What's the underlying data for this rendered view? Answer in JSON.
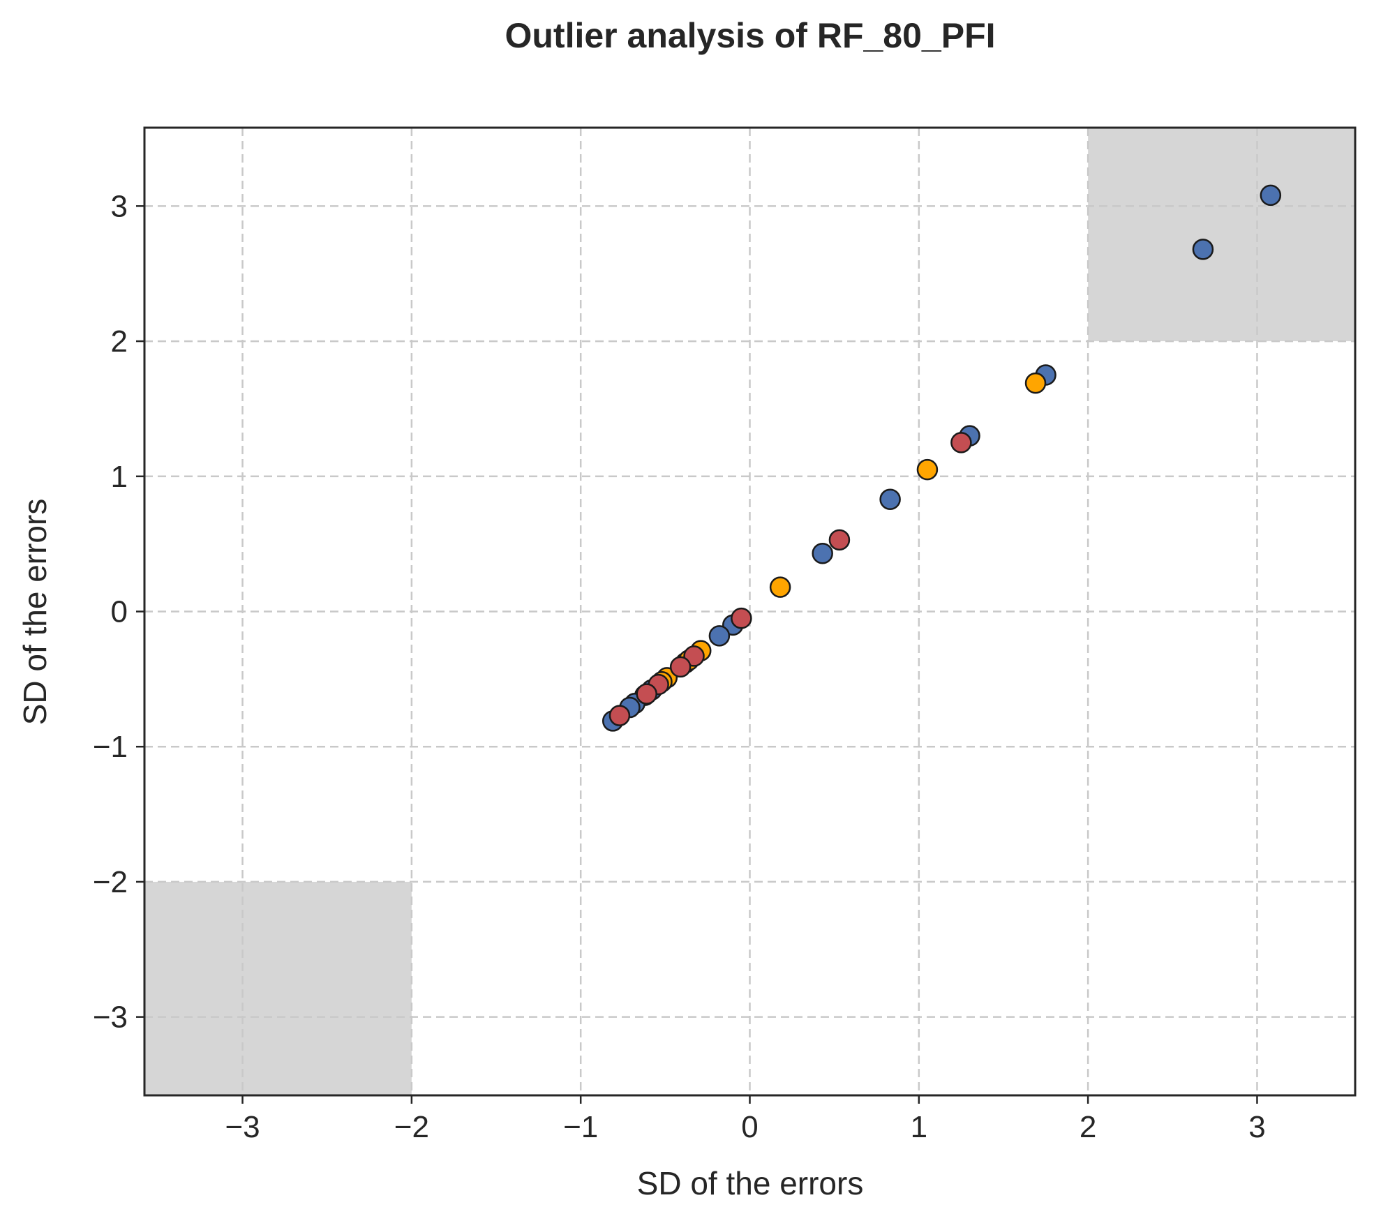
{
  "chart_data": {
    "type": "scatter",
    "title": "Outlier analysis of RF_80_PFI",
    "xlabel": "SD of the errors",
    "ylabel": "SD of the errors",
    "xlim": [
      -3.58,
      3.58
    ],
    "ylim": [
      -3.58,
      3.58
    ],
    "x_ticks": [
      -3,
      -2,
      -1,
      0,
      1,
      2,
      3
    ],
    "y_ticks": [
      -3,
      -2,
      -1,
      0,
      1,
      2,
      3
    ],
    "x_tick_labels": [
      "−3",
      "−2",
      "−1",
      "0",
      "1",
      "2",
      "3"
    ],
    "y_tick_labels": [
      "−3",
      "−2",
      "−1",
      "0",
      "1",
      "2",
      "3"
    ],
    "grid": true,
    "outlier_regions": [
      {
        "x": [
          2,
          3.58
        ],
        "y": [
          2,
          3.58
        ],
        "color": "#d6d6d6"
      },
      {
        "x": [
          -3.58,
          -2
        ],
        "y": [
          -3.58,
          -2
        ],
        "color": "#d6d6d6"
      }
    ],
    "series": [
      {
        "color": "#4c72b0",
        "points": [
          [
            3.08,
            3.08
          ],
          [
            2.68,
            2.68
          ],
          [
            1.75,
            1.75
          ],
          [
            1.3,
            1.3
          ],
          [
            0.83,
            0.83
          ],
          [
            0.43,
            0.43
          ],
          [
            -0.1,
            -0.1
          ],
          [
            -0.18,
            -0.18
          ],
          [
            -0.38,
            -0.38
          ],
          [
            -0.58,
            -0.58
          ],
          [
            -0.62,
            -0.62
          ],
          [
            -0.68,
            -0.68
          ],
          [
            -0.71,
            -0.71
          ],
          [
            -0.81,
            -0.81
          ]
        ]
      },
      {
        "color": "#ffa500",
        "points": [
          [
            1.69,
            1.69
          ],
          [
            1.05,
            1.05
          ],
          [
            0.18,
            0.18
          ],
          [
            -0.29,
            -0.29
          ],
          [
            -0.36,
            -0.36
          ],
          [
            -0.49,
            -0.49
          ],
          [
            -0.52,
            -0.52
          ]
        ]
      },
      {
        "color": "#c44e52",
        "points": [
          [
            1.25,
            1.25
          ],
          [
            0.53,
            0.53
          ],
          [
            -0.05,
            -0.05
          ],
          [
            -0.33,
            -0.33
          ],
          [
            -0.41,
            -0.41
          ],
          [
            -0.54,
            -0.54
          ],
          [
            -0.61,
            -0.61
          ],
          [
            -0.77,
            -0.77
          ]
        ]
      }
    ]
  }
}
